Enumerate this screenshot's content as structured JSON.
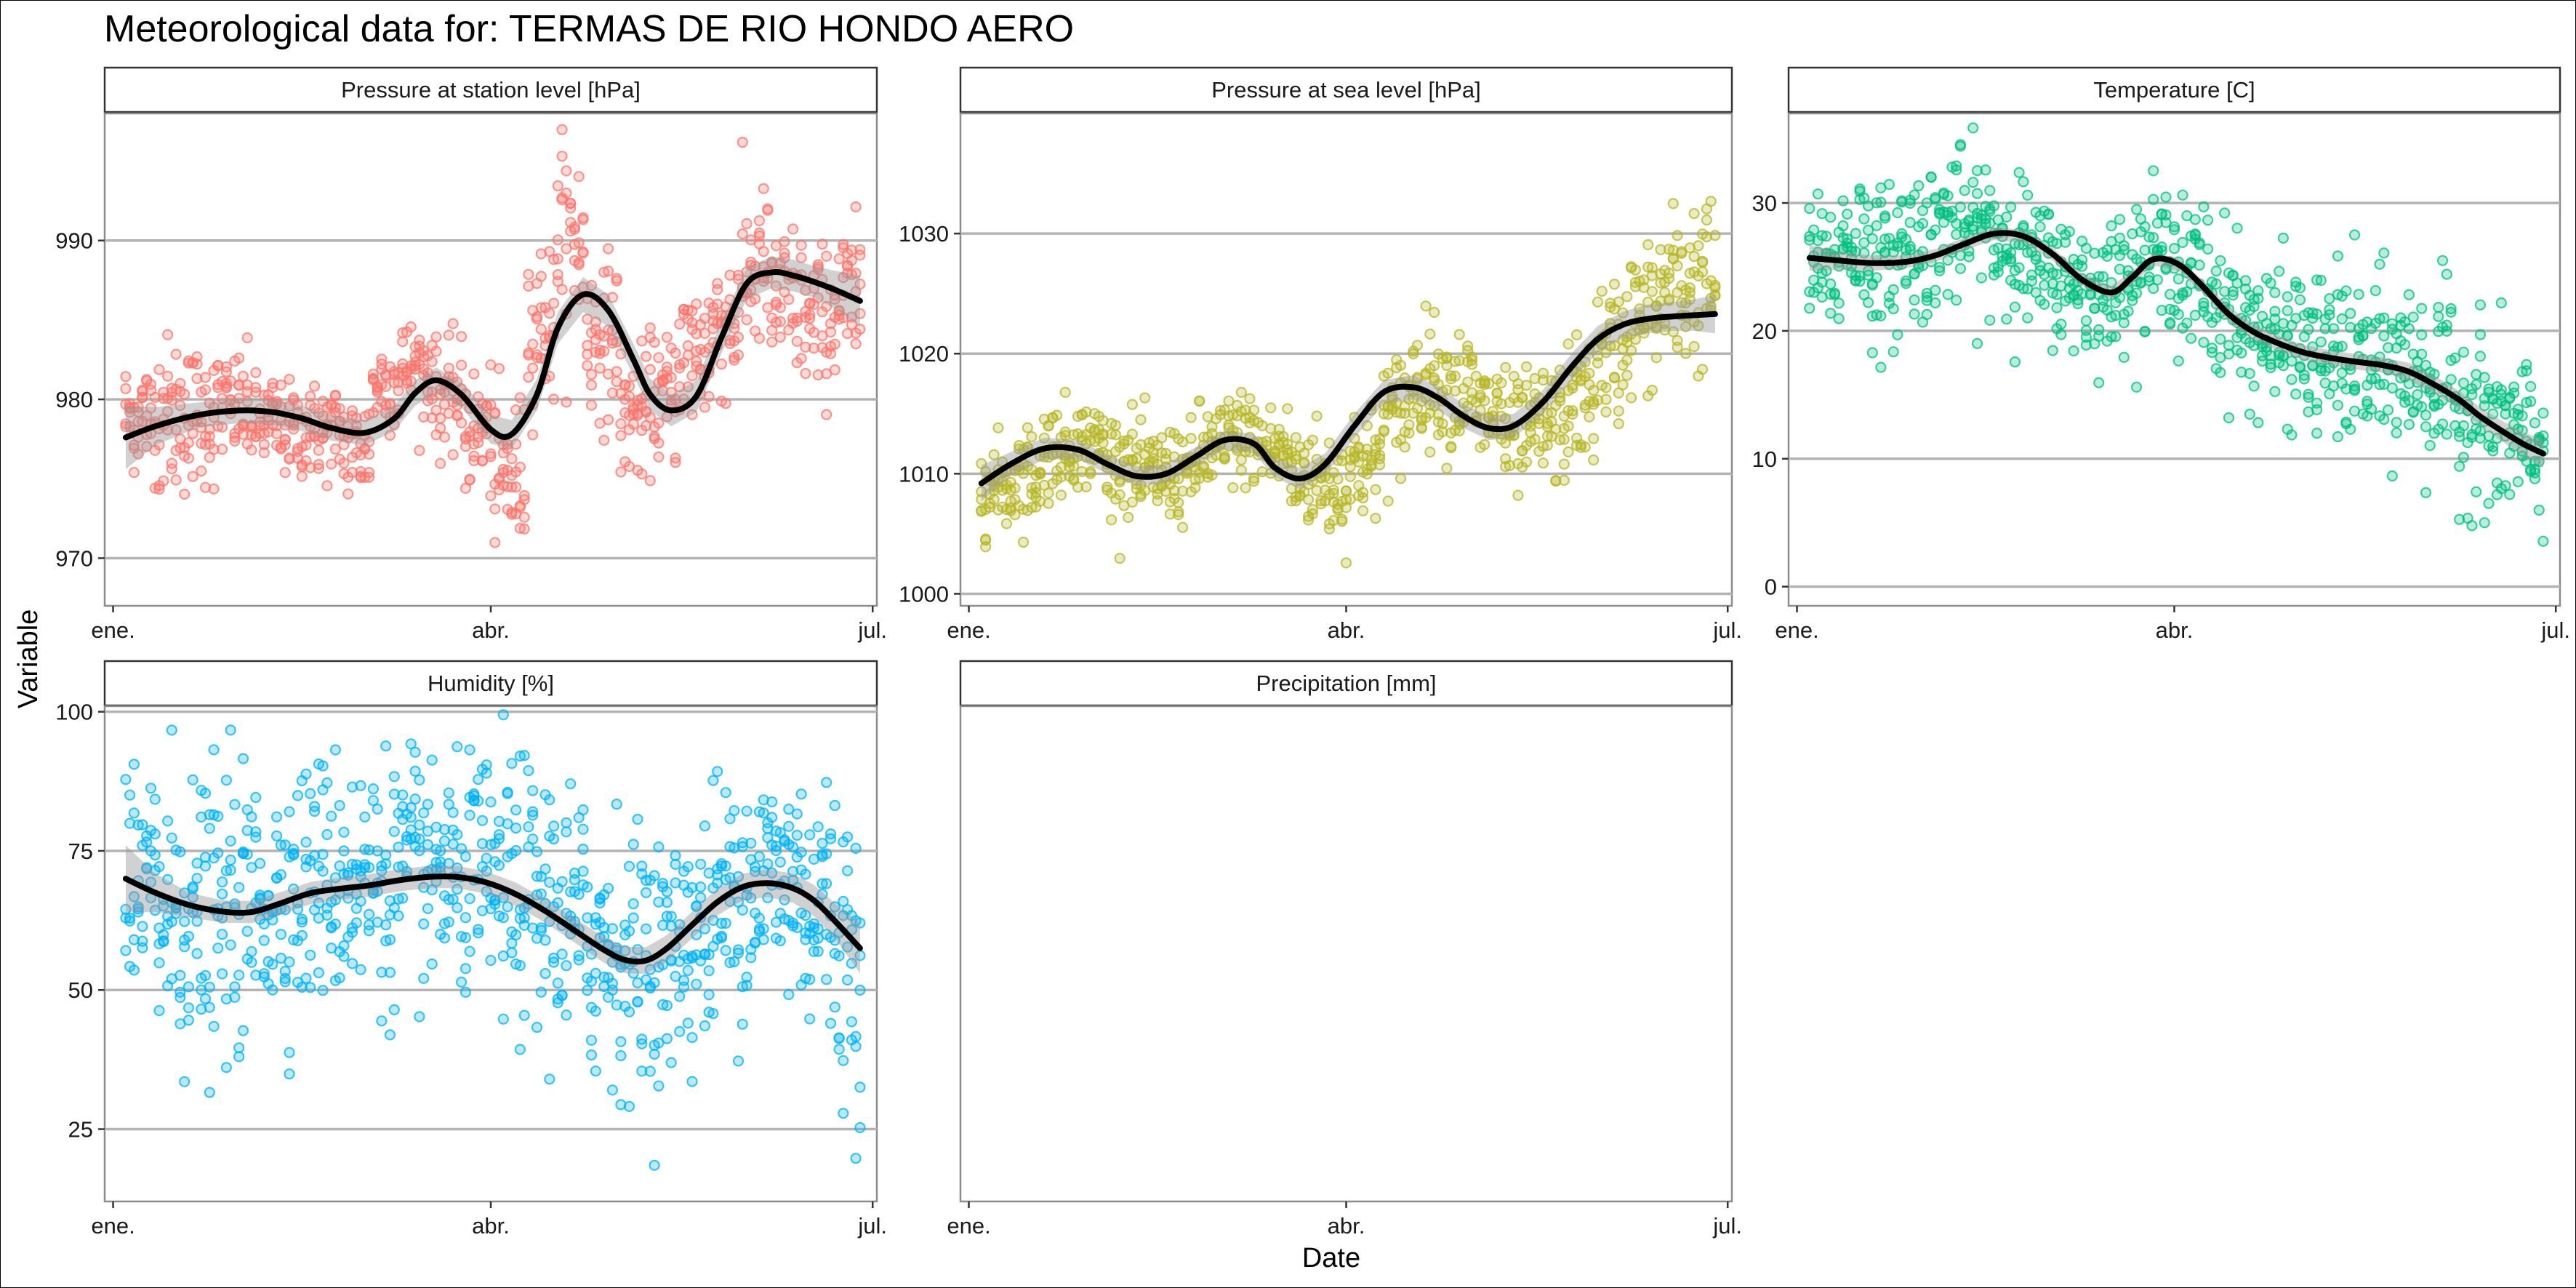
{
  "title": "Meteorological data for: TERMAS DE RIO HONDO AERO",
  "xlabel": "Date",
  "ylabel": "Variable",
  "x_ticks": [
    "ene.",
    "abr.",
    "jul."
  ],
  "chart_data": [
    {
      "type": "scatter",
      "panel": "Pressure at station level [hPa]",
      "color": "#F8766D",
      "ylim": [
        967,
        998
      ],
      "y_ticks": [
        970,
        980,
        990
      ],
      "x": [
        3,
        20,
        38,
        55,
        70,
        80,
        92,
        105,
        120,
        132,
        143,
        152,
        160,
        172,
        178
      ],
      "values": [
        977.5,
        979,
        979.2,
        978.2,
        978.2,
        981.2,
        977.8,
        985.8,
        985.0,
        979.5,
        979.5,
        987.8,
        988.0,
        986.2,
        986.2
      ],
      "smooth_x": [
        3,
        10,
        20,
        30,
        38,
        45,
        52,
        60,
        67,
        72,
        77,
        83,
        90,
        95,
        101,
        106,
        112,
        118,
        124,
        128,
        133,
        139,
        145,
        151,
        157,
        162,
        167,
        172,
        178
      ],
      "smooth_y": [
        977.6,
        978.3,
        979.0,
        979.3,
        979.2,
        978.8,
        978.2,
        977.9,
        978.8,
        980.4,
        981.2,
        980.3,
        978.1,
        977.8,
        980.3,
        984.5,
        986.6,
        985.6,
        982.5,
        980.3,
        979.3,
        980.2,
        983.9,
        987.3,
        988.0,
        987.8,
        987.4,
        986.9,
        986.2
      ],
      "ribbon_halfwidth": [
        2.0,
        1.2,
        0.8,
        0.8,
        0.8,
        0.8,
        0.8,
        0.8,
        0.8,
        0.8,
        0.8,
        0.8,
        0.9,
        0.9,
        1.0,
        1.0,
        1.1,
        1.0,
        1.0,
        1.0,
        1.0,
        1.0,
        1.0,
        1.0,
        1.0,
        1.0,
        1.0,
        1.2,
        1.6
      ],
      "scatter_center": [
        979,
        979,
        979,
        979.5,
        978.5,
        978,
        978,
        977,
        981,
        982,
        980,
        978,
        975,
        985,
        990,
        984,
        979,
        980,
        983,
        985,
        988,
        986,
        985,
        986
      ],
      "scatter_spread": [
        3.5,
        5,
        4.5,
        3.5,
        3,
        3,
        3,
        3.5,
        3,
        3,
        3.5,
        4,
        5,
        5,
        6,
        5,
        4,
        4,
        5,
        5,
        5,
        5,
        4.5,
        5
      ]
    },
    {
      "type": "scatter",
      "panel": "Pressure at sea level [hPa]",
      "color": "#B7B627",
      "ylim": [
        999,
        1040
      ],
      "y_ticks": [
        1000,
        1010,
        1020,
        1030
      ],
      "x": [
        3,
        18,
        35,
        50,
        65,
        80,
        95,
        110,
        125,
        140,
        155,
        168,
        178
      ],
      "values": [
        1009.2,
        1011.5,
        1010.5,
        1010.0,
        1012.5,
        1010.0,
        1013.0,
        1017.2,
        1015.0,
        1014.5,
        1019.0,
        1022.5,
        1023.3
      ],
      "smooth_x": [
        3,
        10,
        18,
        26,
        33,
        40,
        47,
        54,
        61,
        68,
        73,
        79,
        85,
        92,
        99,
        106,
        112,
        118,
        124,
        130,
        137,
        144,
        150,
        156,
        162,
        168,
        173,
        178
      ],
      "smooth_y": [
        1009.2,
        1010.8,
        1012.1,
        1012.0,
        1010.8,
        1009.8,
        1010.0,
        1011.4,
        1012.8,
        1012.5,
        1010.5,
        1009.6,
        1010.8,
        1014.0,
        1016.8,
        1017.2,
        1016.3,
        1014.8,
        1013.8,
        1014.0,
        1016.0,
        1019.0,
        1021.2,
        1022.4,
        1022.9,
        1023.1,
        1023.2,
        1023.3
      ],
      "ribbon_halfwidth": [
        1.5,
        1.0,
        0.9,
        0.8,
        0.8,
        0.8,
        0.8,
        0.8,
        0.8,
        0.8,
        0.8,
        0.9,
        0.9,
        1.0,
        1.0,
        1.0,
        1.0,
        1.0,
        1.0,
        1.0,
        1.0,
        1.1,
        1.1,
        1.1,
        1.2,
        1.2,
        1.3,
        1.6
      ],
      "scatter_center": [
        1009,
        1010,
        1012,
        1012.5,
        1011,
        1010,
        1010,
        1012,
        1013,
        1012,
        1010,
        1009,
        1011,
        1015,
        1018,
        1017,
        1015,
        1013,
        1014,
        1016,
        1020,
        1023,
        1025,
        1026
      ],
      "scatter_spread": [
        4,
        4,
        4,
        3.5,
        4,
        4,
        4,
        4,
        4,
        4,
        4.5,
        4.5,
        5,
        5,
        5,
        5,
        5,
        5,
        5,
        5,
        6,
        6,
        7,
        7
      ]
    },
    {
      "type": "scatter",
      "panel": "Temperature [C]",
      "color": "#00BF7D",
      "ylim": [
        -1.5,
        37
      ],
      "y_ticks": [
        0,
        10,
        20,
        30
      ],
      "x": [
        3,
        20,
        35,
        50,
        65,
        80,
        90,
        100,
        110,
        125,
        140,
        155,
        170,
        178
      ],
      "values": [
        25.7,
        25.3,
        25.8,
        27.7,
        26.5,
        23.0,
        25.5,
        24.0,
        21.0,
        18.5,
        17.7,
        17.0,
        13.5,
        10.4
      ],
      "smooth_x": [
        3,
        10,
        18,
        26,
        33,
        40,
        47,
        54,
        61,
        68,
        75,
        80,
        85,
        91,
        97,
        103,
        109,
        115,
        121,
        127,
        133,
        140,
        146,
        152,
        158,
        163,
        168,
        173,
        178
      ],
      "smooth_y": [
        25.7,
        25.5,
        25.3,
        25.4,
        25.9,
        26.8,
        27.6,
        27.4,
        26.0,
        24.0,
        23.0,
        24.2,
        25.6,
        25.2,
        23.4,
        21.3,
        19.9,
        19.0,
        18.3,
        17.9,
        17.6,
        17.3,
        16.8,
        15.8,
        14.6,
        13.3,
        12.2,
        11.2,
        10.4
      ],
      "ribbon_halfwidth": [
        1.0,
        0.7,
        0.6,
        0.5,
        0.5,
        0.5,
        0.5,
        0.5,
        0.5,
        0.5,
        0.5,
        0.5,
        0.5,
        0.5,
        0.5,
        0.6,
        0.6,
        0.6,
        0.6,
        0.6,
        0.6,
        0.6,
        0.7,
        0.7,
        0.7,
        0.7,
        0.8,
        0.9,
        1.1
      ],
      "scatter_center": [
        25,
        27,
        25,
        27,
        28,
        28,
        27,
        25,
        24,
        23,
        25,
        26,
        24,
        22,
        20,
        19,
        18,
        18,
        17,
        17,
        16,
        14,
        12,
        11
      ],
      "scatter_spread": [
        5,
        6,
        6,
        6,
        6,
        6,
        6,
        5,
        5,
        5,
        5,
        5,
        6,
        6,
        6,
        6,
        6,
        7,
        7,
        7,
        7,
        7,
        7,
        7
      ]
    },
    {
      "type": "scatter",
      "panel": "Humidity [%]",
      "color": "#00B0F6",
      "ylim": [
        12,
        101
      ],
      "y_ticks": [
        25,
        50,
        75,
        100
      ],
      "x": [
        3,
        20,
        35,
        50,
        65,
        80,
        95,
        110,
        120,
        130,
        145,
        160,
        178
      ],
      "values": [
        70,
        66,
        64,
        68,
        69,
        70,
        69,
        64,
        57,
        56,
        62,
        68,
        57
      ],
      "smooth_x": [
        3,
        10,
        18,
        26,
        33,
        40,
        47,
        54,
        61,
        68,
        75,
        82,
        89,
        96,
        103,
        110,
        117,
        122,
        127,
        132,
        138,
        144,
        150,
        156,
        162,
        167,
        172,
        178
      ],
      "smooth_y": [
        70.0,
        67.5,
        65.3,
        64.1,
        64.0,
        65.6,
        67.4,
        68.2,
        68.8,
        69.7,
        70.3,
        70.3,
        69.3,
        67.2,
        64.2,
        60.7,
        57.2,
        55.4,
        55.3,
        57.5,
        61.7,
        65.8,
        68.5,
        69.2,
        68.3,
        66.1,
        62.4,
        57.5
      ],
      "ribbon_halfwidth": [
        6.0,
        3.5,
        2.2,
        2.0,
        2.0,
        2.0,
        2.0,
        2.0,
        2.0,
        2.0,
        2.0,
        2.0,
        2.0,
        2.1,
        2.1,
        2.2,
        2.3,
        2.4,
        2.4,
        2.4,
        2.4,
        2.4,
        2.4,
        2.5,
        2.6,
        2.8,
        3.2,
        4.5
      ],
      "scatter_center": [
        68,
        65,
        62,
        64,
        66,
        68,
        70,
        70,
        70,
        71,
        71,
        70,
        68,
        65,
        62,
        58,
        56,
        55,
        60,
        66,
        70,
        70,
        66,
        58
      ],
      "scatter_spread": [
        25,
        28,
        25,
        25,
        22,
        22,
        22,
        22,
        22,
        22,
        22,
        22,
        24,
        24,
        24,
        24,
        22,
        22,
        22,
        22,
        22,
        22,
        25,
        30
      ]
    },
    {
      "type": "scatter",
      "panel": "Precipitation [mm]",
      "color": "#E76BF3",
      "ylim": [
        0,
        1
      ],
      "y_ticks": [],
      "x": [],
      "values": []
    }
  ]
}
